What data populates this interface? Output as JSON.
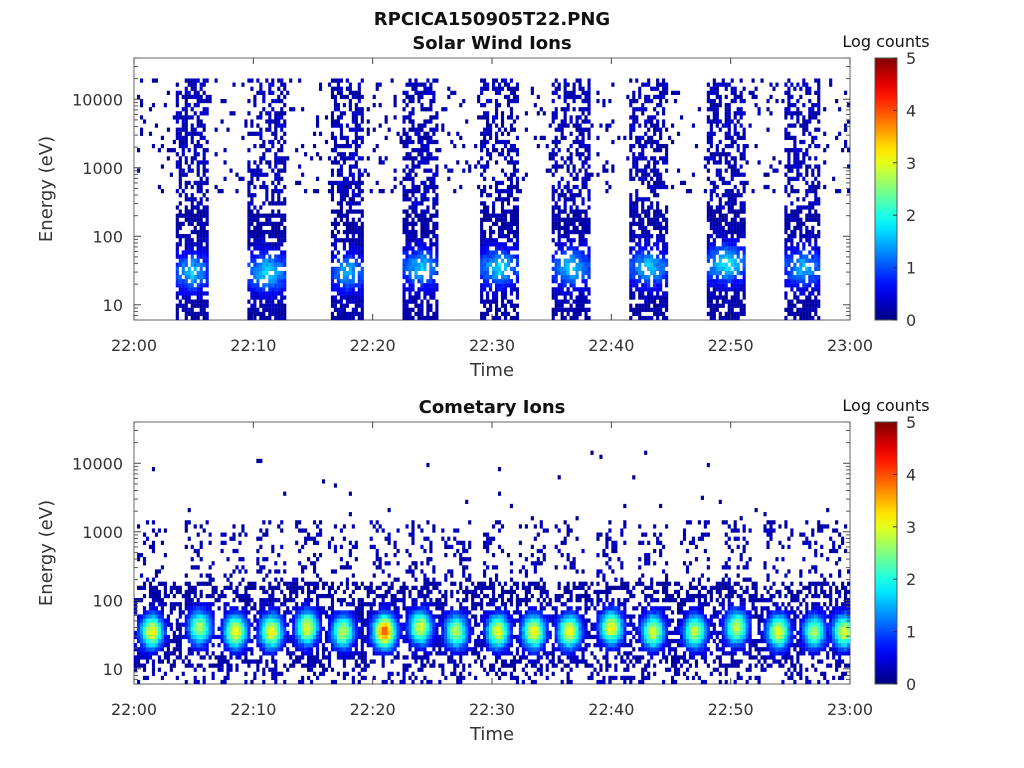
{
  "figure": {
    "title": "RPCICA150905T22.PNG",
    "colormap": "jet"
  },
  "chart_data": [
    {
      "type": "heatmap",
      "title": "Solar Wind Ions",
      "xlabel": "Time",
      "ylabel": "Energy (eV)",
      "x_range": [
        "22:00",
        "23:00"
      ],
      "x_ticks": [
        "22:00",
        "22:10",
        "22:20",
        "22:30",
        "22:40",
        "22:50",
        "23:00"
      ],
      "y_scale": "log",
      "y_range": [
        6,
        40000
      ],
      "y_ticks": [
        "10",
        "100",
        "1000",
        "10000"
      ],
      "colorbar": {
        "label": "Log counts",
        "range": [
          0,
          5
        ],
        "ticks": [
          "0",
          "1",
          "2",
          "3",
          "4",
          "5"
        ]
      },
      "sweeps": [
        {
          "start": "22:03.5",
          "end": "22:06.2",
          "peak_energy_ev": 30,
          "peak_log_counts": 1.5
        },
        {
          "start": "22:09.5",
          "end": "22:12.8",
          "peak_energy_ev": 30,
          "peak_log_counts": 1.6
        },
        {
          "start": "22:16.5",
          "end": "22:19.3",
          "peak_energy_ev": 30,
          "peak_log_counts": 1.4
        },
        {
          "start": "22:22.5",
          "end": "22:25.6",
          "peak_energy_ev": 35,
          "peak_log_counts": 1.5
        },
        {
          "start": "22:29.0",
          "end": "22:32.2",
          "peak_energy_ev": 35,
          "peak_log_counts": 1.6
        },
        {
          "start": "22:35.0",
          "end": "22:38.2",
          "peak_energy_ev": 35,
          "peak_log_counts": 1.5
        },
        {
          "start": "22:41.5",
          "end": "22:44.8",
          "peak_energy_ev": 35,
          "peak_log_counts": 1.5
        },
        {
          "start": "22:48.0",
          "end": "22:51.3",
          "peak_energy_ev": 40,
          "peak_log_counts": 1.7
        },
        {
          "start": "22:54.5",
          "end": "22:57.6",
          "peak_energy_ev": 35,
          "peak_log_counts": 1.4
        }
      ]
    },
    {
      "type": "heatmap",
      "title": "Cometary Ions",
      "xlabel": "Time",
      "ylabel": "Energy (eV)",
      "x_range": [
        "22:00",
        "23:00"
      ],
      "x_ticks": [
        "22:00",
        "22:10",
        "22:20",
        "22:30",
        "22:40",
        "22:50",
        "23:00"
      ],
      "y_scale": "log",
      "y_range": [
        6,
        40000
      ],
      "y_ticks": [
        "10",
        "100",
        "1000",
        "10000"
      ],
      "colorbar": {
        "label": "Log counts",
        "range": [
          0,
          5
        ],
        "ticks": [
          "0",
          "1",
          "2",
          "3",
          "4",
          "5"
        ]
      },
      "sweeps": [
        {
          "center": "22:01.5",
          "peak_energy_ev": 35,
          "peak_log_counts": 3.0
        },
        {
          "center": "22:05.5",
          "peak_energy_ev": 40,
          "peak_log_counts": 2.6
        },
        {
          "center": "22:08.5",
          "peak_energy_ev": 35,
          "peak_log_counts": 3.0
        },
        {
          "center": "22:11.5",
          "peak_energy_ev": 35,
          "peak_log_counts": 3.0
        },
        {
          "center": "22:14.5",
          "peak_energy_ev": 40,
          "peak_log_counts": 2.9
        },
        {
          "center": "22:17.5",
          "peak_energy_ev": 35,
          "peak_log_counts": 2.7
        },
        {
          "center": "22:21.0",
          "peak_energy_ev": 35,
          "peak_log_counts": 3.8
        },
        {
          "center": "22:24.0",
          "peak_energy_ev": 40,
          "peak_log_counts": 2.8
        },
        {
          "center": "22:27.0",
          "peak_energy_ev": 35,
          "peak_log_counts": 2.6
        },
        {
          "center": "22:30.5",
          "peak_energy_ev": 35,
          "peak_log_counts": 2.9
        },
        {
          "center": "22:33.5",
          "peak_energy_ev": 35,
          "peak_log_counts": 3.0
        },
        {
          "center": "22:36.5",
          "peak_energy_ev": 35,
          "peak_log_counts": 3.0
        },
        {
          "center": "22:40.0",
          "peak_energy_ev": 40,
          "peak_log_counts": 3.0
        },
        {
          "center": "22:43.5",
          "peak_energy_ev": 35,
          "peak_log_counts": 2.8
        },
        {
          "center": "22:47.0",
          "peak_energy_ev": 35,
          "peak_log_counts": 2.7
        },
        {
          "center": "22:50.5",
          "peak_energy_ev": 40,
          "peak_log_counts": 2.7
        },
        {
          "center": "22:54.0",
          "peak_energy_ev": 35,
          "peak_log_counts": 2.9
        },
        {
          "center": "22:57.0",
          "peak_energy_ev": 35,
          "peak_log_counts": 2.5
        },
        {
          "center": "22:59.5",
          "peak_energy_ev": 35,
          "peak_log_counts": 2.8
        }
      ]
    }
  ]
}
